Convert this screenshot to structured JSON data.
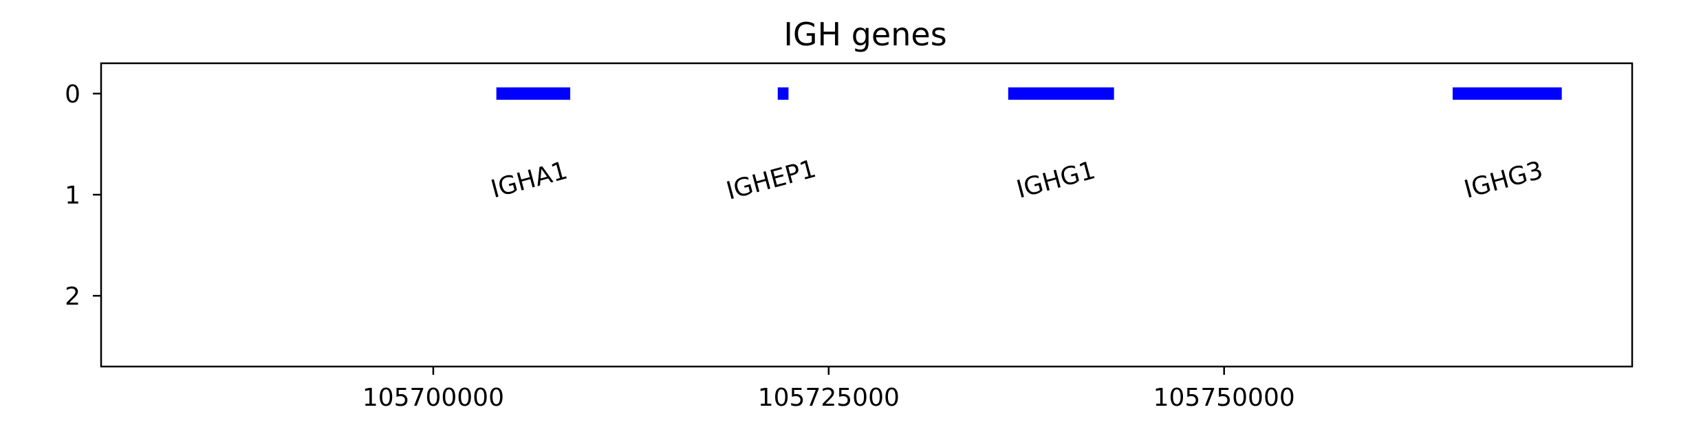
{
  "chart_data": {
    "type": "gene-track",
    "title": "IGH genes",
    "xlabel": "",
    "ylabel": "",
    "xlim": [
      105679000,
      105775800
    ],
    "ylim": [
      2.7,
      -0.3
    ],
    "xticks": [
      105700000,
      105725000,
      105750000
    ],
    "xtick_labels": [
      "105700000",
      "105725000",
      "105750000"
    ],
    "yticks": [
      0,
      1,
      2
    ],
    "ytick_labels": [
      "0",
      "1",
      "2"
    ],
    "grid": false,
    "bar_color": "#0000ff",
    "genes": [
      {
        "name": "IGHA1",
        "start": 105703990,
        "end": 105708660,
        "track": 0,
        "label_center": 105706200,
        "label_rotation": 15
      },
      {
        "name": "IGHEP1",
        "start": 105721780,
        "end": 105722460,
        "track": 0,
        "label_center": 105721500,
        "label_rotation": 15
      },
      {
        "name": "IGHG1",
        "start": 105736350,
        "end": 105743040,
        "track": 0,
        "label_center": 105739500,
        "label_rotation": 15
      },
      {
        "name": "IGHG3",
        "start": 105764450,
        "end": 105771350,
        "track": 0,
        "label_center": 105767800,
        "label_rotation": 15
      }
    ]
  }
}
